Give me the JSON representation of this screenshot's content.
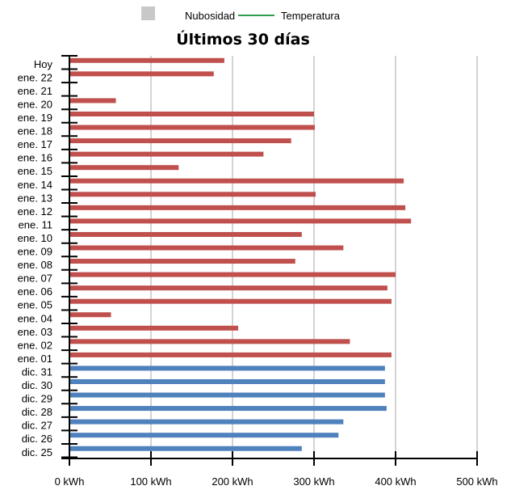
{
  "chart_data": {
    "type": "bar",
    "orientation": "horizontal",
    "title": "Últimos 30 días",
    "legend": [
      {
        "name": "Nubosidad",
        "symbol": "square",
        "color": "#c8c8c8"
      },
      {
        "name": "Temperatura",
        "symbol": "line",
        "color": "#2e9e4f"
      }
    ],
    "legend_position": "top-center",
    "grid": true,
    "xlim": [
      0,
      500
    ],
    "x_ticks": [
      0,
      100,
      200,
      300,
      400,
      500
    ],
    "x_tick_labels": [
      "0 kWh",
      "100 kWh",
      "200 kWh",
      "300 kWh",
      "400 kWh",
      "500 kWh"
    ],
    "unit": "kWh",
    "categories": [
      "Hoy",
      "ene. 22",
      "ene. 21",
      "ene. 20",
      "ene. 19",
      "ene. 18",
      "ene. 17",
      "ene. 16",
      "ene. 15",
      "ene. 14",
      "ene. 13",
      "ene. 12",
      "ene. 11",
      "ene. 10",
      "ene. 09",
      "ene. 08",
      "ene. 07",
      "ene. 06",
      "ene. 05",
      "ene. 04",
      "ene. 03",
      "ene. 02",
      "ene. 01",
      "dic. 31",
      "dic. 30",
      "dic. 29",
      "dic. 28",
      "dic. 27",
      "dic. 26",
      "dic. 25"
    ],
    "values": [
      190,
      177,
      0,
      57,
      300,
      301,
      272,
      238,
      134,
      410,
      302,
      412,
      419,
      285,
      336,
      277,
      400,
      390,
      395,
      51,
      207,
      344,
      395,
      387,
      387,
      387,
      389,
      336,
      330,
      285
    ],
    "bar_colors": [
      "#c0504d",
      "#c0504d",
      "#c0504d",
      "#c0504d",
      "#c0504d",
      "#c0504d",
      "#c0504d",
      "#c0504d",
      "#c0504d",
      "#c0504d",
      "#c0504d",
      "#c0504d",
      "#c0504d",
      "#c0504d",
      "#c0504d",
      "#c0504d",
      "#c0504d",
      "#c0504d",
      "#c0504d",
      "#c0504d",
      "#c0504d",
      "#c0504d",
      "#c0504d",
      "#4f81bd",
      "#4f81bd",
      "#4f81bd",
      "#4f81bd",
      "#4f81bd",
      "#4f81bd",
      "#4f81bd"
    ]
  }
}
